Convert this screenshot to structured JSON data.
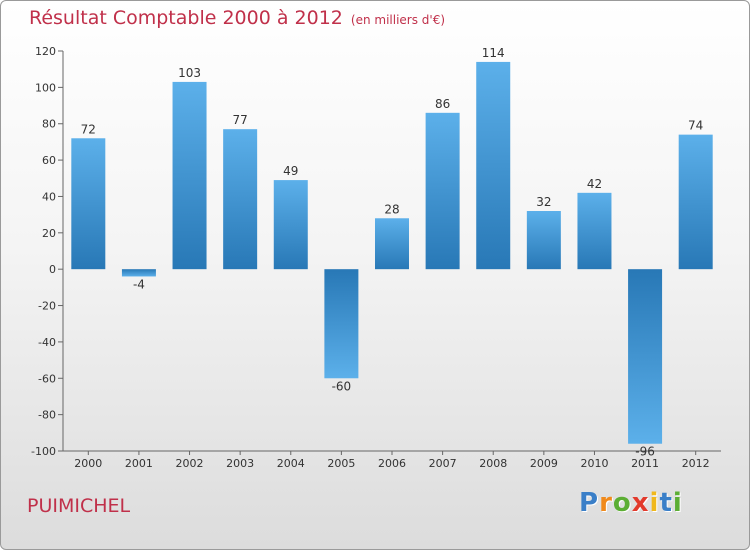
{
  "chart_data": {
    "type": "bar",
    "title": "Résultat Comptable 2000 à 2012",
    "subtitle": "(en milliers d'€)",
    "categories": [
      "2000",
      "2001",
      "2002",
      "2003",
      "2004",
      "2005",
      "2006",
      "2007",
      "2008",
      "2009",
      "2010",
      "2011",
      "2012"
    ],
    "values": [
      72,
      -4,
      103,
      77,
      49,
      -60,
      28,
      86,
      114,
      32,
      42,
      -96,
      74
    ],
    "ylim": [
      -100,
      120
    ],
    "yticks": [
      120,
      100,
      80,
      60,
      40,
      20,
      0,
      -20,
      -40,
      -60,
      -80,
      -100
    ],
    "xlabel": "",
    "ylabel": "",
    "grid": false,
    "bar_color_light": "#5aaee8",
    "bar_color_dark": "#2a7ab8"
  },
  "location": "PUIMICHEL",
  "logo": {
    "letters": [
      "P",
      "r",
      "o",
      "x",
      "i",
      "t",
      "i"
    ],
    "colors": [
      "#3a7fc8",
      "#f08a1c",
      "#5cae34",
      "#e23a2c",
      "#f0b81c",
      "#3a7fc8",
      "#5cae34"
    ]
  }
}
